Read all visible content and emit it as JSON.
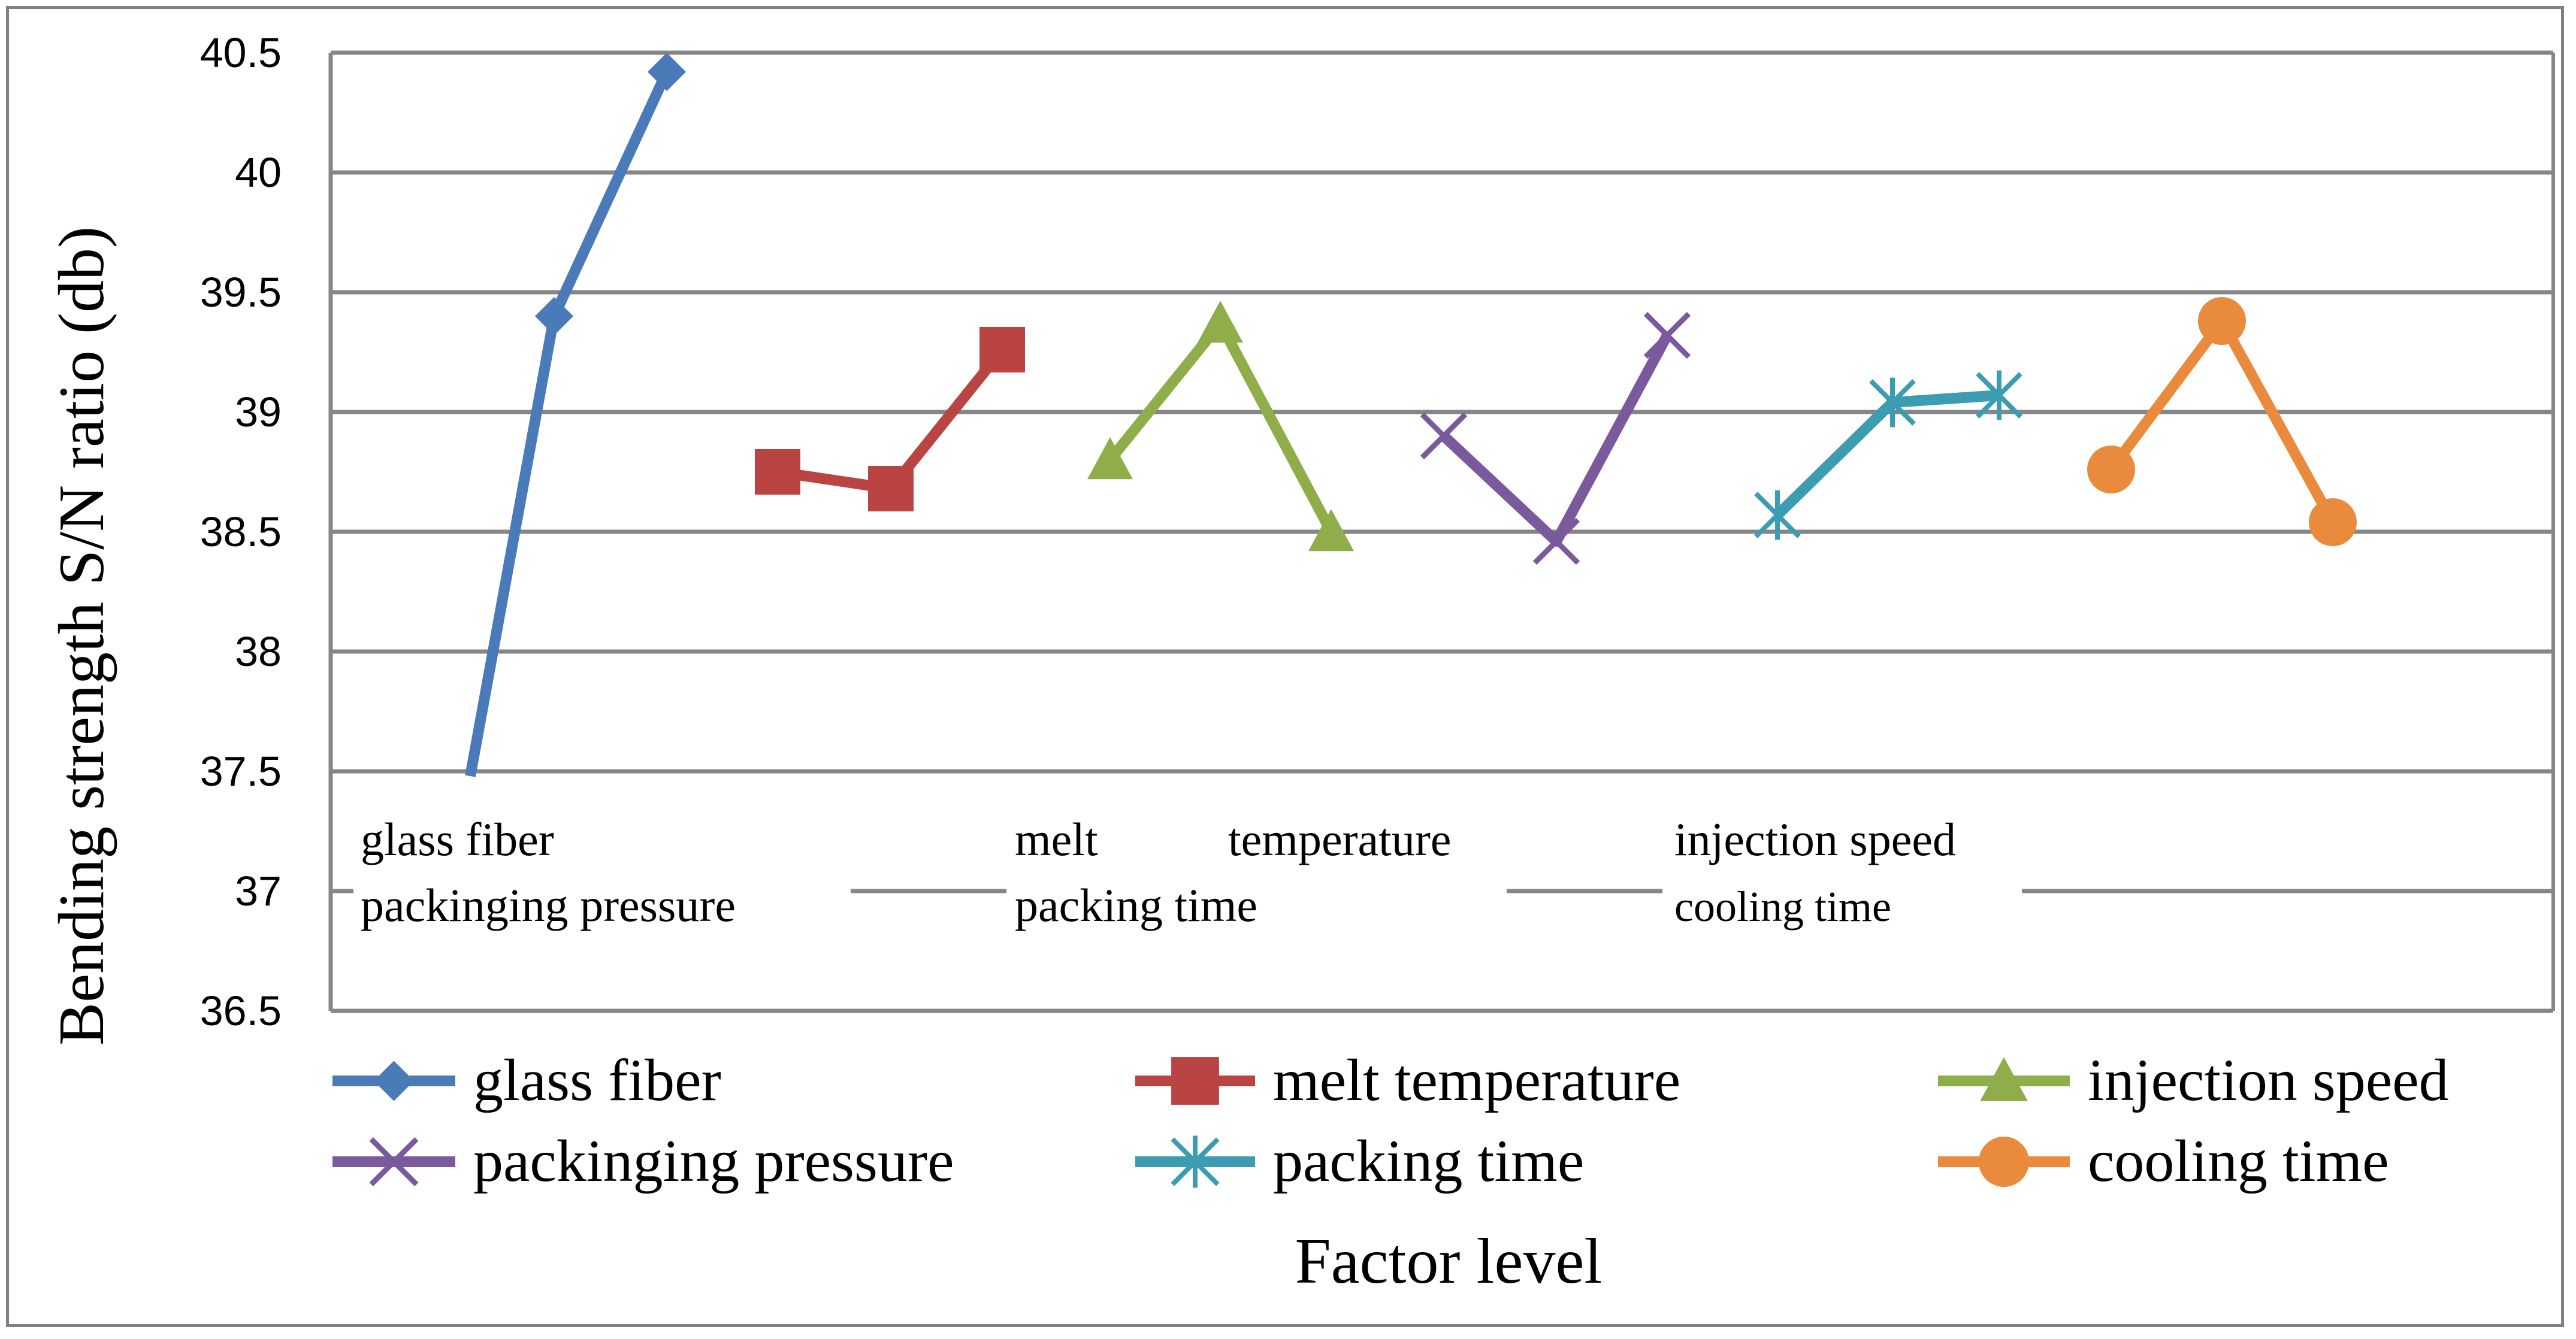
{
  "chart_data": {
    "type": "line",
    "title": "",
    "ylabel": "Bending strength S/N ratio (db)",
    "xlabel": "Factor level",
    "ylim": [
      36.5,
      40.5
    ],
    "yticks": [
      "40.5",
      "40",
      "39.5",
      "39",
      "38.5",
      "38",
      "37.5",
      "37",
      "36.5"
    ],
    "grid": true,
    "legend_position": "bottom",
    "category_labels": [
      "glass fiber",
      "packinging pressure",
      "melt",
      "temperature",
      "packing time",
      "injection speed",
      "cooling time"
    ],
    "series": [
      {
        "name": "glass fiber",
        "color": "#4a7ab8",
        "marker": "diamond",
        "x": [
          1,
          2,
          3
        ],
        "values": [
          37.48,
          39.4,
          40.42
        ]
      },
      {
        "name": "melt temperature",
        "color": "#b94441",
        "marker": "square",
        "x": [
          4,
          5,
          6
        ],
        "values": [
          38.75,
          38.68,
          39.26
        ]
      },
      {
        "name": "injection speed",
        "color": "#8fae4a",
        "marker": "triangle",
        "x": [
          7,
          8,
          9
        ],
        "values": [
          38.8,
          39.37,
          38.5
        ]
      },
      {
        "name": "packinging pressure",
        "color": "#7a5a9c",
        "marker": "x",
        "x": [
          10,
          11,
          12
        ],
        "values": [
          38.9,
          38.46,
          39.32
        ]
      },
      {
        "name": "packing time",
        "color": "#3c9cb1",
        "marker": "asterisk",
        "x": [
          13,
          14,
          15
        ],
        "values": [
          38.57,
          39.04,
          39.07
        ]
      },
      {
        "name": "cooling time",
        "color": "#e98a3d",
        "marker": "circle",
        "x": [
          16,
          17,
          18
        ],
        "values": [
          38.76,
          39.38,
          38.54
        ]
      }
    ]
  }
}
